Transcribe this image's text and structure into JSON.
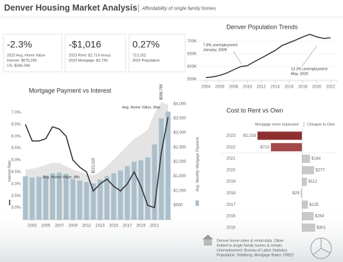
{
  "header": {
    "title": "Denver Housing Market Analysis",
    "subtitle": "Affordability of single family homes"
  },
  "kpis": [
    {
      "value": "-2.3%",
      "lines": [
        "2023 Avg. Home Value",
        "Denver: $575,256",
        "US: $346,048"
      ],
      "color": "#c0392b"
    },
    {
      "value": "-$1,016",
      "lines": [
        "2023 Rent: $2,714 minus",
        "2023  Mortgage: $3,730"
      ],
      "color": "#c0392b"
    },
    {
      "value": "0.27%",
      "lines": [
        "713,252",
        "2022 Population"
      ],
      "color": "#3a8a6e"
    }
  ],
  "chart_data": [
    {
      "type": "line",
      "title": "Denver Population Trends",
      "x": [
        2004,
        2005,
        2006,
        2007,
        2008,
        2009,
        2010,
        2011,
        2012,
        2013,
        2014,
        2015,
        2016,
        2017,
        2018,
        2019,
        2020,
        2021,
        2022
      ],
      "values": [
        557000,
        560000,
        566000,
        575000,
        588000,
        600000,
        604000,
        620000,
        634000,
        649000,
        664000,
        683000,
        694000,
        705000,
        717000,
        727000,
        717000,
        711000,
        713252
      ],
      "color": "#333333",
      "xlim": [
        2003,
        2023
      ],
      "xticks": [
        2004,
        2006,
        2008,
        2010,
        2012,
        2014,
        2016,
        2018,
        2020,
        2022
      ],
      "ylim": [
        545000,
        741000
      ],
      "yticks": [
        {
          "value": 550000,
          "label": "550K"
        },
        {
          "value": 600000,
          "label": "600K"
        },
        {
          "value": 650000,
          "label": "650K"
        },
        {
          "value": 700000,
          "label": "700K"
        }
      ],
      "grid": true,
      "annotations": [
        {
          "label": "7.8% unemployment",
          "date": "January, 2009"
        },
        {
          "label": "13.3% unemployment",
          "date": "May, 2020"
        }
      ]
    },
    {
      "type": "combo",
      "title": "Mortgage Payment vs Interest",
      "x": [
        2002,
        2003,
        2004,
        2005,
        2006,
        2007,
        2008,
        2009,
        2010,
        2011,
        2012,
        2013,
        2014,
        2015,
        2016,
        2017,
        2018,
        2019,
        2020,
        2021,
        2022,
        2023
      ],
      "interest_rate": {
        "values": [
          6.5,
          5.8,
          5.8,
          5.9,
          6.4,
          6.3,
          6.0,
          5.0,
          4.7,
          4.5,
          3.7,
          4.0,
          4.2,
          3.9,
          3.7,
          4.0,
          4.5,
          3.9,
          3.1,
          3.0,
          5.3,
          6.8
        ],
        "color": "#333333",
        "axis_label": "Interest Rate"
      },
      "mortgage_payment": {
        "values": [
          1500,
          1450,
          1480,
          1520,
          1600,
          1620,
          1580,
          1400,
          1350,
          1300,
          1250,
          1380,
          1500,
          1600,
          1700,
          1850,
          2000,
          2050,
          2150,
          2600,
          3500,
          3730
        ],
        "color": "#a9bfcc",
        "axis": "y2",
        "axis_label": "Avg. Monthly Mortgage Payment"
      },
      "home_value": {
        "values": [
          250000,
          255000,
          262000,
          275000,
          285000,
          283000,
          268000,
          250000,
          240000,
          228000,
          221110,
          240000,
          268000,
          300000,
          335000,
          370000,
          405000,
          425000,
          450000,
          530000,
          588788,
          575256
        ],
        "value_labels": [
          null,
          null,
          null,
          null,
          null,
          null,
          null,
          null,
          null,
          null,
          "$221,110",
          null,
          null,
          null,
          null,
          null,
          null,
          null,
          null,
          null,
          "$588,788",
          null
        ],
        "color": "#e4e4e4"
      },
      "annotations": [
        "Avg. Home Value, Max",
        "Avg. Home Value, Min"
      ],
      "xlim": [
        2001.5,
        2023.5
      ],
      "xticks": [
        2003,
        2005,
        2007,
        2009,
        2011,
        2013,
        2015,
        2017,
        2019,
        2021
      ],
      "ylim": [
        2.5,
        7.7
      ],
      "yticks": [
        {
          "value": 3.0,
          "label": "3.0%"
        },
        {
          "value": 3.5,
          "label": "3.5%"
        },
        {
          "value": 4.0,
          "label": "4.0%"
        },
        {
          "value": 4.5,
          "label": "4.5%"
        },
        {
          "value": 5.0,
          "label": "5.0%"
        },
        {
          "value": 5.5,
          "label": "5.5%"
        },
        {
          "value": 6.0,
          "label": "6.0%"
        },
        {
          "value": 6.5,
          "label": "6.5%"
        },
        {
          "value": 7.0,
          "label": "7.0%"
        }
      ],
      "y2lim": [
        0,
        4280
      ],
      "y2ticks": [
        {
          "value": 500,
          "label": "$500"
        },
        {
          "value": 1000,
          "label": "$1,000"
        },
        {
          "value": 1500,
          "label": "$1,500"
        },
        {
          "value": 2000,
          "label": "$2,000"
        },
        {
          "value": 2500,
          "label": "$2,500"
        },
        {
          "value": 3000,
          "label": "$3,000"
        },
        {
          "value": 3500,
          "label": "$3,500"
        },
        {
          "value": 4000,
          "label": "$4,000"
        }
      ],
      "y3lim": [
        0,
        620000
      ]
    },
    {
      "type": "hbar",
      "title": "Cost to Rent vs Own",
      "headers": [
        "Mortgage more expensive",
        "Cheaper to Own"
      ],
      "categories": [
        "2023",
        "2022",
        "2021",
        "2020",
        "2019",
        "2018",
        "2017",
        "2016",
        "2015"
      ],
      "values": [
        -1016,
        -710,
        184,
        277,
        112,
        -29,
        135,
        264,
        301
      ],
      "value_labels": [
        "-$1,016",
        "-$710",
        "$184",
        "$277",
        "$112",
        "-$29",
        "$135",
        "$264",
        "$301"
      ],
      "colors": [
        "#8e2f2f",
        "#a24848",
        "#c8c8c8",
        "#c8c8c8",
        "#c8c8c8",
        "#c8c8c8",
        "#c8c8c8",
        "#c8c8c8",
        "#c8c8c8"
      ],
      "xlim": [
        -1100,
        700
      ]
    }
  ],
  "footer": {
    "lines": [
      "Denver home sales & rental data: Zillow",
      "limited to single family homes & rentals",
      "Unemployment: Bureau of Labor Statistics",
      "Population: Yeildberg, Mortgage Rates: FRED"
    ]
  }
}
